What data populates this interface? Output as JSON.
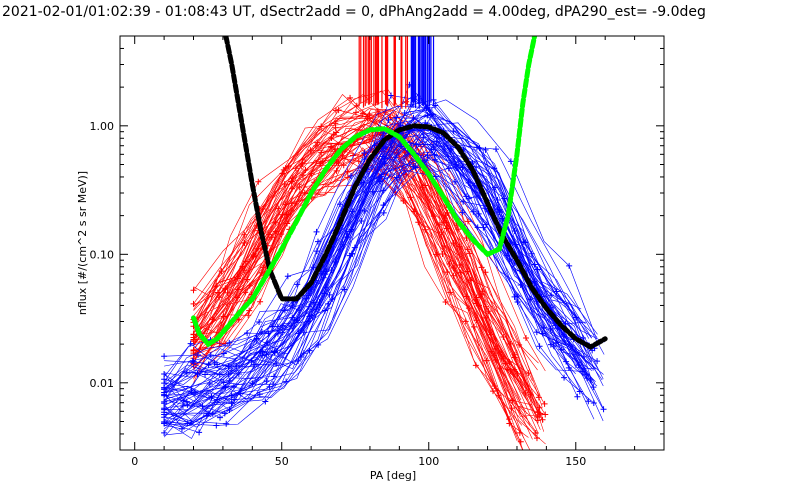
{
  "chart_data": {
    "type": "line",
    "title": "2021-02-01/01:02:39 - 01:08:43 UT, dSectr2add = 0, dPhAng2add = 4.00deg, dPA290_est=  -9.0deg",
    "xlabel": "PA [deg]",
    "ylabel": "nflux [#/(cm^2 s sr MeV)]",
    "xlim": [
      -5,
      180
    ],
    "ylim": [
      0.003,
      5.0
    ],
    "yscale": "log",
    "grid": false,
    "x_ticks": [
      "0",
      "50",
      "100",
      "150"
    ],
    "x_tick_values": [
      0,
      50,
      100,
      150
    ],
    "y_ticks": [
      "0.01",
      "0.10",
      "1.00"
    ],
    "y_tick_values": [
      0.01,
      0.1,
      1.0
    ],
    "colors": {
      "red_group": "#ff0000",
      "blue_group": "#0000ff",
      "black_fit": "#000000",
      "green_fit": "#00ff00"
    },
    "series": [
      {
        "color": "#ff0000",
        "style": "many thin lines with + markers",
        "peak_pa": 82,
        "x": [
          20,
          30,
          40,
          50,
          60,
          70,
          80,
          85,
          90,
          100,
          110,
          120,
          130,
          140
        ],
        "y": [
          0.02,
          0.04,
          0.1,
          0.25,
          0.5,
          0.75,
          0.95,
          0.95,
          0.8,
          0.3,
          0.1,
          0.03,
          0.01,
          0.004
        ]
      },
      {
        "color": "#0000ff",
        "style": "many thin lines with + markers",
        "peak_pa": 98,
        "x": [
          10,
          30,
          50,
          60,
          70,
          80,
          90,
          95,
          100,
          110,
          120,
          130,
          140,
          150,
          160
        ],
        "y": [
          0.007,
          0.01,
          0.02,
          0.04,
          0.12,
          0.35,
          0.8,
          1.0,
          0.95,
          0.6,
          0.3,
          0.1,
          0.04,
          0.02,
          0.01
        ]
      },
      {
        "color": "#000000",
        "style": "thick dashed fit",
        "x": [
          31,
          33,
          36,
          40,
          43,
          46,
          50,
          55,
          60,
          65,
          70,
          75,
          80,
          85,
          90,
          95,
          100,
          105,
          110,
          115,
          120,
          125,
          130,
          135,
          140,
          145,
          150,
          155,
          160
        ],
        "y": [
          5.0,
          3.0,
          1.2,
          0.35,
          0.15,
          0.075,
          0.045,
          0.045,
          0.06,
          0.1,
          0.18,
          0.34,
          0.55,
          0.78,
          0.93,
          1.0,
          0.98,
          0.88,
          0.68,
          0.45,
          0.25,
          0.14,
          0.09,
          0.055,
          0.038,
          0.028,
          0.022,
          0.019,
          0.022
        ]
      },
      {
        "color": "#00ff00",
        "style": "thick dashed fit",
        "x": [
          20,
          22,
          25,
          28,
          32,
          36,
          40,
          45,
          50,
          55,
          60,
          65,
          70,
          75,
          80,
          85,
          90,
          95,
          100,
          105,
          110,
          115,
          120,
          124,
          127,
          130,
          132,
          134,
          136
        ],
        "y": [
          0.032,
          0.024,
          0.02,
          0.022,
          0.028,
          0.036,
          0.045,
          0.07,
          0.11,
          0.18,
          0.3,
          0.46,
          0.65,
          0.82,
          0.93,
          0.95,
          0.82,
          0.6,
          0.42,
          0.28,
          0.18,
          0.13,
          0.1,
          0.11,
          0.2,
          0.6,
          1.5,
          3.0,
          5.0
        ]
      }
    ],
    "vertical_markers": [
      {
        "color": "#ff0000",
        "x_range": [
          76,
          93
        ]
      },
      {
        "color": "#0000ff",
        "x_range": [
          94,
          102
        ]
      }
    ]
  }
}
